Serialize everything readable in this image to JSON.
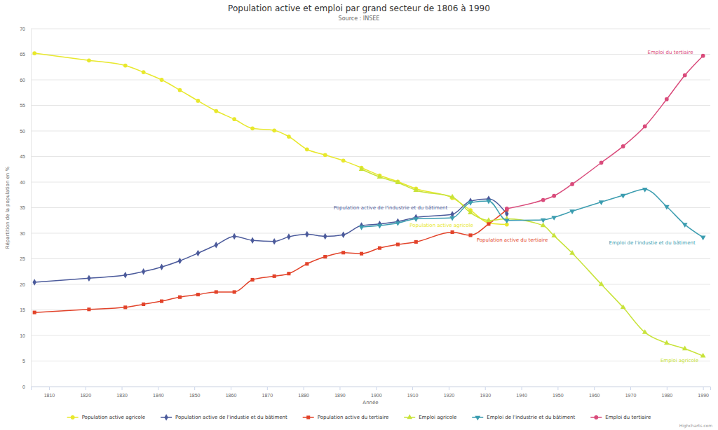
{
  "chart_data": {
    "type": "line",
    "title": "Population active et emploi par grand secteur de 1806 à 1990",
    "subtitle": "Source : INSEE",
    "x_label": "Année",
    "y_label": "Répartition de la population en %",
    "credits": "Highcharts.com",
    "x": [
      1806,
      1821,
      1831,
      1836,
      1841,
      1846,
      1851,
      1856,
      1861,
      1866,
      1872,
      1876,
      1881,
      1886,
      1891,
      1896,
      1901,
      1906,
      1911,
      1921,
      1926,
      1931,
      1936,
      1946,
      1949,
      1954,
      1962,
      1968,
      1974,
      1980,
      1985,
      1990
    ],
    "xlim": [
      1805,
      1992
    ],
    "xticks": [
      1810,
      1820,
      1830,
      1840,
      1850,
      1860,
      1870,
      1880,
      1890,
      1900,
      1910,
      1920,
      1930,
      1940,
      1950,
      1960,
      1970,
      1980,
      1990
    ],
    "ylim": [
      0,
      70
    ],
    "yticks": [
      0,
      5,
      10,
      15,
      20,
      25,
      30,
      35,
      40,
      45,
      50,
      55,
      60,
      65,
      70
    ],
    "grid": true,
    "legend": "bottom",
    "series": [
      {
        "name": "Population active agricole",
        "color": "#e8e82c",
        "marker": "circle",
        "values": [
          65.2,
          63.8,
          62.8,
          61.5,
          60.0,
          58.0,
          55.9,
          53.9,
          52.3,
          50.5,
          50.1,
          48.9,
          46.4,
          45.3,
          44.2,
          42.8,
          41.3,
          40.1,
          38.7,
          36.9,
          34.5,
          32.0,
          31.7,
          null,
          null,
          null,
          null,
          null,
          null,
          null,
          null,
          null
        ]
      },
      {
        "name": "Population active de l'industie et du bâtiment",
        "color": "#4b5a9b",
        "marker": "diamond",
        "values": [
          20.4,
          21.2,
          21.8,
          22.5,
          23.4,
          24.6,
          26.1,
          27.7,
          29.4,
          28.6,
          28.4,
          29.3,
          29.8,
          29.4,
          29.7,
          31.5,
          31.8,
          32.3,
          33.1,
          33.7,
          36.3,
          36.7,
          33.8,
          null,
          null,
          null,
          null,
          null,
          null,
          null,
          null,
          null
        ]
      },
      {
        "name": "Population active du tertiaire",
        "color": "#e2432a",
        "marker": "square",
        "values": [
          14.5,
          15.1,
          15.5,
          16.1,
          16.7,
          17.5,
          18.0,
          18.5,
          18.5,
          20.9,
          21.6,
          22.1,
          24.0,
          25.4,
          26.2,
          26.0,
          27.1,
          27.8,
          28.3,
          30.2,
          29.6,
          31.8,
          34.6,
          null,
          null,
          null,
          null,
          null,
          null,
          null,
          null,
          null
        ]
      },
      {
        "name": "Emploi agricole",
        "color": "#c8e33a",
        "marker": "triangle",
        "values": [
          null,
          null,
          null,
          null,
          null,
          null,
          null,
          null,
          null,
          null,
          null,
          null,
          null,
          null,
          null,
          42.5,
          41.0,
          39.9,
          38.4,
          37.1,
          34.0,
          32.5,
          32.8,
          31.5,
          29.5,
          26.1,
          20.0,
          15.5,
          10.6,
          8.5,
          7.4,
          6.0
        ]
      },
      {
        "name": "Emploi de l'industrie et du bâtiment",
        "color": "#3c9db0",
        "marker": "triangle-down",
        "values": [
          null,
          null,
          null,
          null,
          null,
          null,
          null,
          null,
          null,
          null,
          null,
          null,
          null,
          null,
          null,
          31.2,
          31.5,
          32.0,
          32.8,
          33.0,
          36.0,
          36.3,
          32.5,
          32.6,
          33.1,
          34.3,
          36.1,
          37.4,
          38.6,
          35.2,
          31.7,
          29.2
        ]
      },
      {
        "name": "Emploi du tertiaire",
        "color": "#d94b7b",
        "marker": "circle",
        "values": [
          null,
          null,
          null,
          null,
          null,
          null,
          null,
          null,
          null,
          null,
          null,
          null,
          null,
          null,
          null,
          null,
          null,
          null,
          null,
          null,
          null,
          null,
          34.8,
          36.5,
          37.3,
          39.6,
          43.8,
          47.0,
          50.9,
          56.2,
          60.9,
          64.7
        ]
      }
    ],
    "annotations": [
      "Population active agricole",
      "Population active de l'industrie et du bâtiment",
      "Population active du tertiaire",
      "Emploi agricole",
      "Emploi de l'industie et du bâtiment",
      "Emploi du tertiaire"
    ]
  }
}
